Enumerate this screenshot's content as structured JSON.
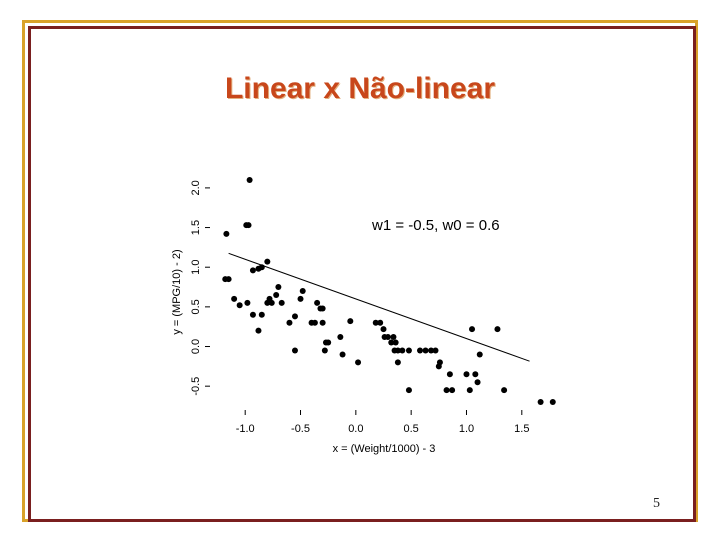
{
  "slide": {
    "title": "Linear x Não-linear",
    "page_number": "5"
  },
  "colors": {
    "title": "#c8471b",
    "frame_gold": "#d9a22a",
    "frame_dark": "#7a1f1f",
    "points": "#000000"
  },
  "chart_data": {
    "type": "scatter",
    "title": "",
    "xlabel": "x = (Weight/1000) - 3",
    "ylabel": "y = (MPG/10) - 2)",
    "xlim": [
      -1.3,
      1.8
    ],
    "ylim": [
      -0.75,
      2.15
    ],
    "xticks": [
      -1.0,
      -0.5,
      0.0,
      0.5,
      1.0,
      1.5
    ],
    "xtick_labels": [
      "-1.0",
      "-0.5",
      "0.0",
      "0.5",
      "1.0",
      "1.5"
    ],
    "yticks": [
      -0.5,
      0.0,
      0.5,
      1.0,
      1.5,
      2.0
    ],
    "ytick_labels": [
      "-0.5",
      "0.0",
      "0.5",
      "1.0",
      "1.5",
      "2.0"
    ],
    "grid": false,
    "annotation": "w1 = -0.5, w0 = 0.6",
    "line": {
      "slope": -0.5,
      "intercept": 0.6,
      "x": [
        -1.15,
        1.57
      ]
    },
    "points": [
      [
        -0.96,
        2.1
      ],
      [
        -0.97,
        1.53
      ],
      [
        -0.99,
        1.53
      ],
      [
        -1.17,
        1.42
      ],
      [
        -0.8,
        1.07
      ],
      [
        -0.85,
        1.0
      ],
      [
        -0.88,
        0.98
      ],
      [
        -0.93,
        0.96
      ],
      [
        -1.15,
        0.85
      ],
      [
        -1.18,
        0.85
      ],
      [
        -0.7,
        0.75
      ],
      [
        -0.48,
        0.7
      ],
      [
        -0.72,
        0.65
      ],
      [
        -1.1,
        0.6
      ],
      [
        -0.5,
        0.6
      ],
      [
        -0.78,
        0.6
      ],
      [
        -0.8,
        0.55
      ],
      [
        -0.98,
        0.55
      ],
      [
        -0.76,
        0.55
      ],
      [
        -0.67,
        0.55
      ],
      [
        -0.35,
        0.55
      ],
      [
        -1.05,
        0.52
      ],
      [
        -0.32,
        0.48
      ],
      [
        -0.3,
        0.48
      ],
      [
        -0.93,
        0.4
      ],
      [
        -0.85,
        0.4
      ],
      [
        -0.55,
        0.38
      ],
      [
        -0.3,
        0.3
      ],
      [
        -0.37,
        0.3
      ],
      [
        -0.4,
        0.3
      ],
      [
        -0.6,
        0.3
      ],
      [
        -0.05,
        0.32
      ],
      [
        0.18,
        0.3
      ],
      [
        0.22,
        0.3
      ],
      [
        1.05,
        0.22
      ],
      [
        1.28,
        0.22
      ],
      [
        -0.88,
        0.2
      ],
      [
        0.25,
        0.22
      ],
      [
        -0.14,
        0.12
      ],
      [
        0.26,
        0.12
      ],
      [
        0.29,
        0.12
      ],
      [
        0.34,
        0.12
      ],
      [
        -0.25,
        0.05
      ],
      [
        -0.27,
        0.05
      ],
      [
        0.32,
        0.05
      ],
      [
        0.36,
        0.05
      ],
      [
        0.38,
        -0.05
      ],
      [
        0.35,
        -0.05
      ],
      [
        0.48,
        -0.05
      ],
      [
        0.58,
        -0.05
      ],
      [
        0.63,
        -0.05
      ],
      [
        0.68,
        -0.05
      ],
      [
        0.72,
        -0.05
      ],
      [
        0.42,
        -0.05
      ],
      [
        -0.55,
        -0.05
      ],
      [
        -0.28,
        -0.05
      ],
      [
        0.76,
        -0.2
      ],
      [
        1.12,
        -0.1
      ],
      [
        -0.12,
        -0.1
      ],
      [
        0.02,
        -0.2
      ],
      [
        0.38,
        -0.2
      ],
      [
        0.75,
        -0.25
      ],
      [
        0.85,
        -0.35
      ],
      [
        1.0,
        -0.35
      ],
      [
        1.08,
        -0.35
      ],
      [
        1.1,
        -0.45
      ],
      [
        0.48,
        -0.55
      ],
      [
        0.82,
        -0.55
      ],
      [
        0.87,
        -0.55
      ],
      [
        1.03,
        -0.55
      ],
      [
        1.34,
        -0.55
      ],
      [
        1.67,
        -0.7
      ],
      [
        1.78,
        -0.7
      ]
    ]
  }
}
